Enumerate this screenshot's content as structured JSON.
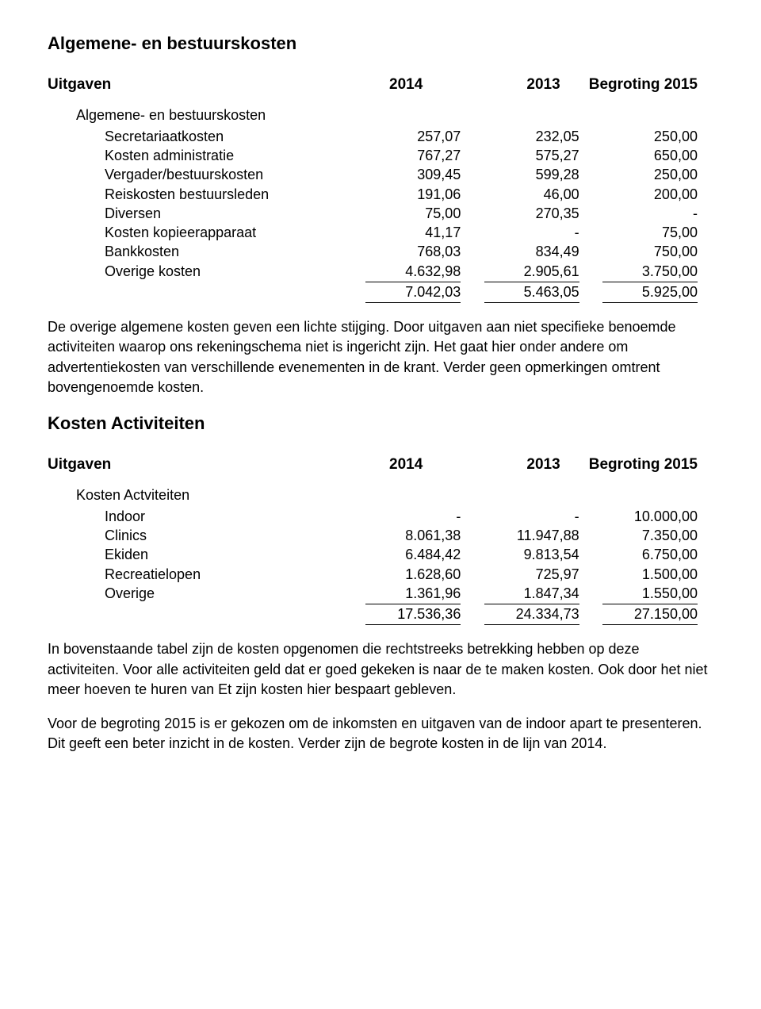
{
  "section1": {
    "title": "Algemene- en bestuurskosten",
    "header": {
      "c0": "Uitgaven",
      "c1": "2014",
      "c2": "2013",
      "c3": "Begroting 2015"
    },
    "subhead": "Algemene- en bestuurskosten",
    "rows": [
      {
        "label": "Secretariaatkosten",
        "c1": "257,07",
        "c2": "232,05",
        "c3": "250,00"
      },
      {
        "label": "Kosten administratie",
        "c1": "767,27",
        "c2": "575,27",
        "c3": "650,00"
      },
      {
        "label": "Vergader/bestuurskosten",
        "c1": "309,45",
        "c2": "599,28",
        "c3": "250,00"
      },
      {
        "label": "Reiskosten bestuursleden",
        "c1": "191,06",
        "c2": "46,00",
        "c3": "200,00"
      },
      {
        "label": "Diversen",
        "c1": "75,00",
        "c2": "270,35",
        "c3": "-"
      },
      {
        "label": "Kosten kopieerapparaat",
        "c1": "41,17",
        "c2": "-",
        "c3": "75,00"
      },
      {
        "label": "Bankkosten",
        "c1": "768,03",
        "c2": "834,49",
        "c3": "750,00"
      },
      {
        "label": "Overige kosten",
        "c1": "4.632,98",
        "c2": "2.905,61",
        "c3": "3.750,00"
      }
    ],
    "total": {
      "c1": "7.042,03",
      "c2": "5.463,05",
      "c3": "5.925,00"
    },
    "paragraph": "De overige algemene kosten geven een lichte stijging. Door uitgaven aan niet specifieke benoemde activiteiten waarop ons rekeningschema niet is ingericht zijn. Het gaat hier onder andere om advertentiekosten van verschillende evenementen in de krant. Verder geen opmerkingen omtrent bovengenoemde kosten."
  },
  "section2": {
    "title": "Kosten Activiteiten",
    "header": {
      "c0": "Uitgaven",
      "c1": "2014",
      "c2": "2013",
      "c3": "Begroting 2015"
    },
    "subhead": "Kosten Actviteiten",
    "rows": [
      {
        "label": "Indoor",
        "c1": "-",
        "c2": "-",
        "c3": "10.000,00"
      },
      {
        "label": "Clinics",
        "c1": "8.061,38",
        "c2": "11.947,88",
        "c3": "7.350,00"
      },
      {
        "label": "Ekiden",
        "c1": "6.484,42",
        "c2": "9.813,54",
        "c3": "6.750,00"
      },
      {
        "label": "Recreatielopen",
        "c1": "1.628,60",
        "c2": "725,97",
        "c3": "1.500,00"
      },
      {
        "label": "Overige",
        "c1": "1.361,96",
        "c2": "1.847,34",
        "c3": "1.550,00"
      }
    ],
    "total": {
      "c1": "17.536,36",
      "c2": "24.334,73",
      "c3": "27.150,00"
    },
    "paragraph1": "In bovenstaande tabel zijn de kosten opgenomen die rechtstreeks betrekking hebben op deze activiteiten. Voor alle activiteiten geld dat er goed gekeken is naar de te maken kosten. Ook door het niet meer hoeven te huren van Et zijn kosten hier bespaart gebleven.",
    "paragraph2": "Voor de begroting 2015 is er gekozen om de inkomsten en uitgaven van de indoor apart te presenteren. Dit geeft een beter inzicht in de kosten. Verder zijn de begrote kosten in de lijn van 2014."
  }
}
